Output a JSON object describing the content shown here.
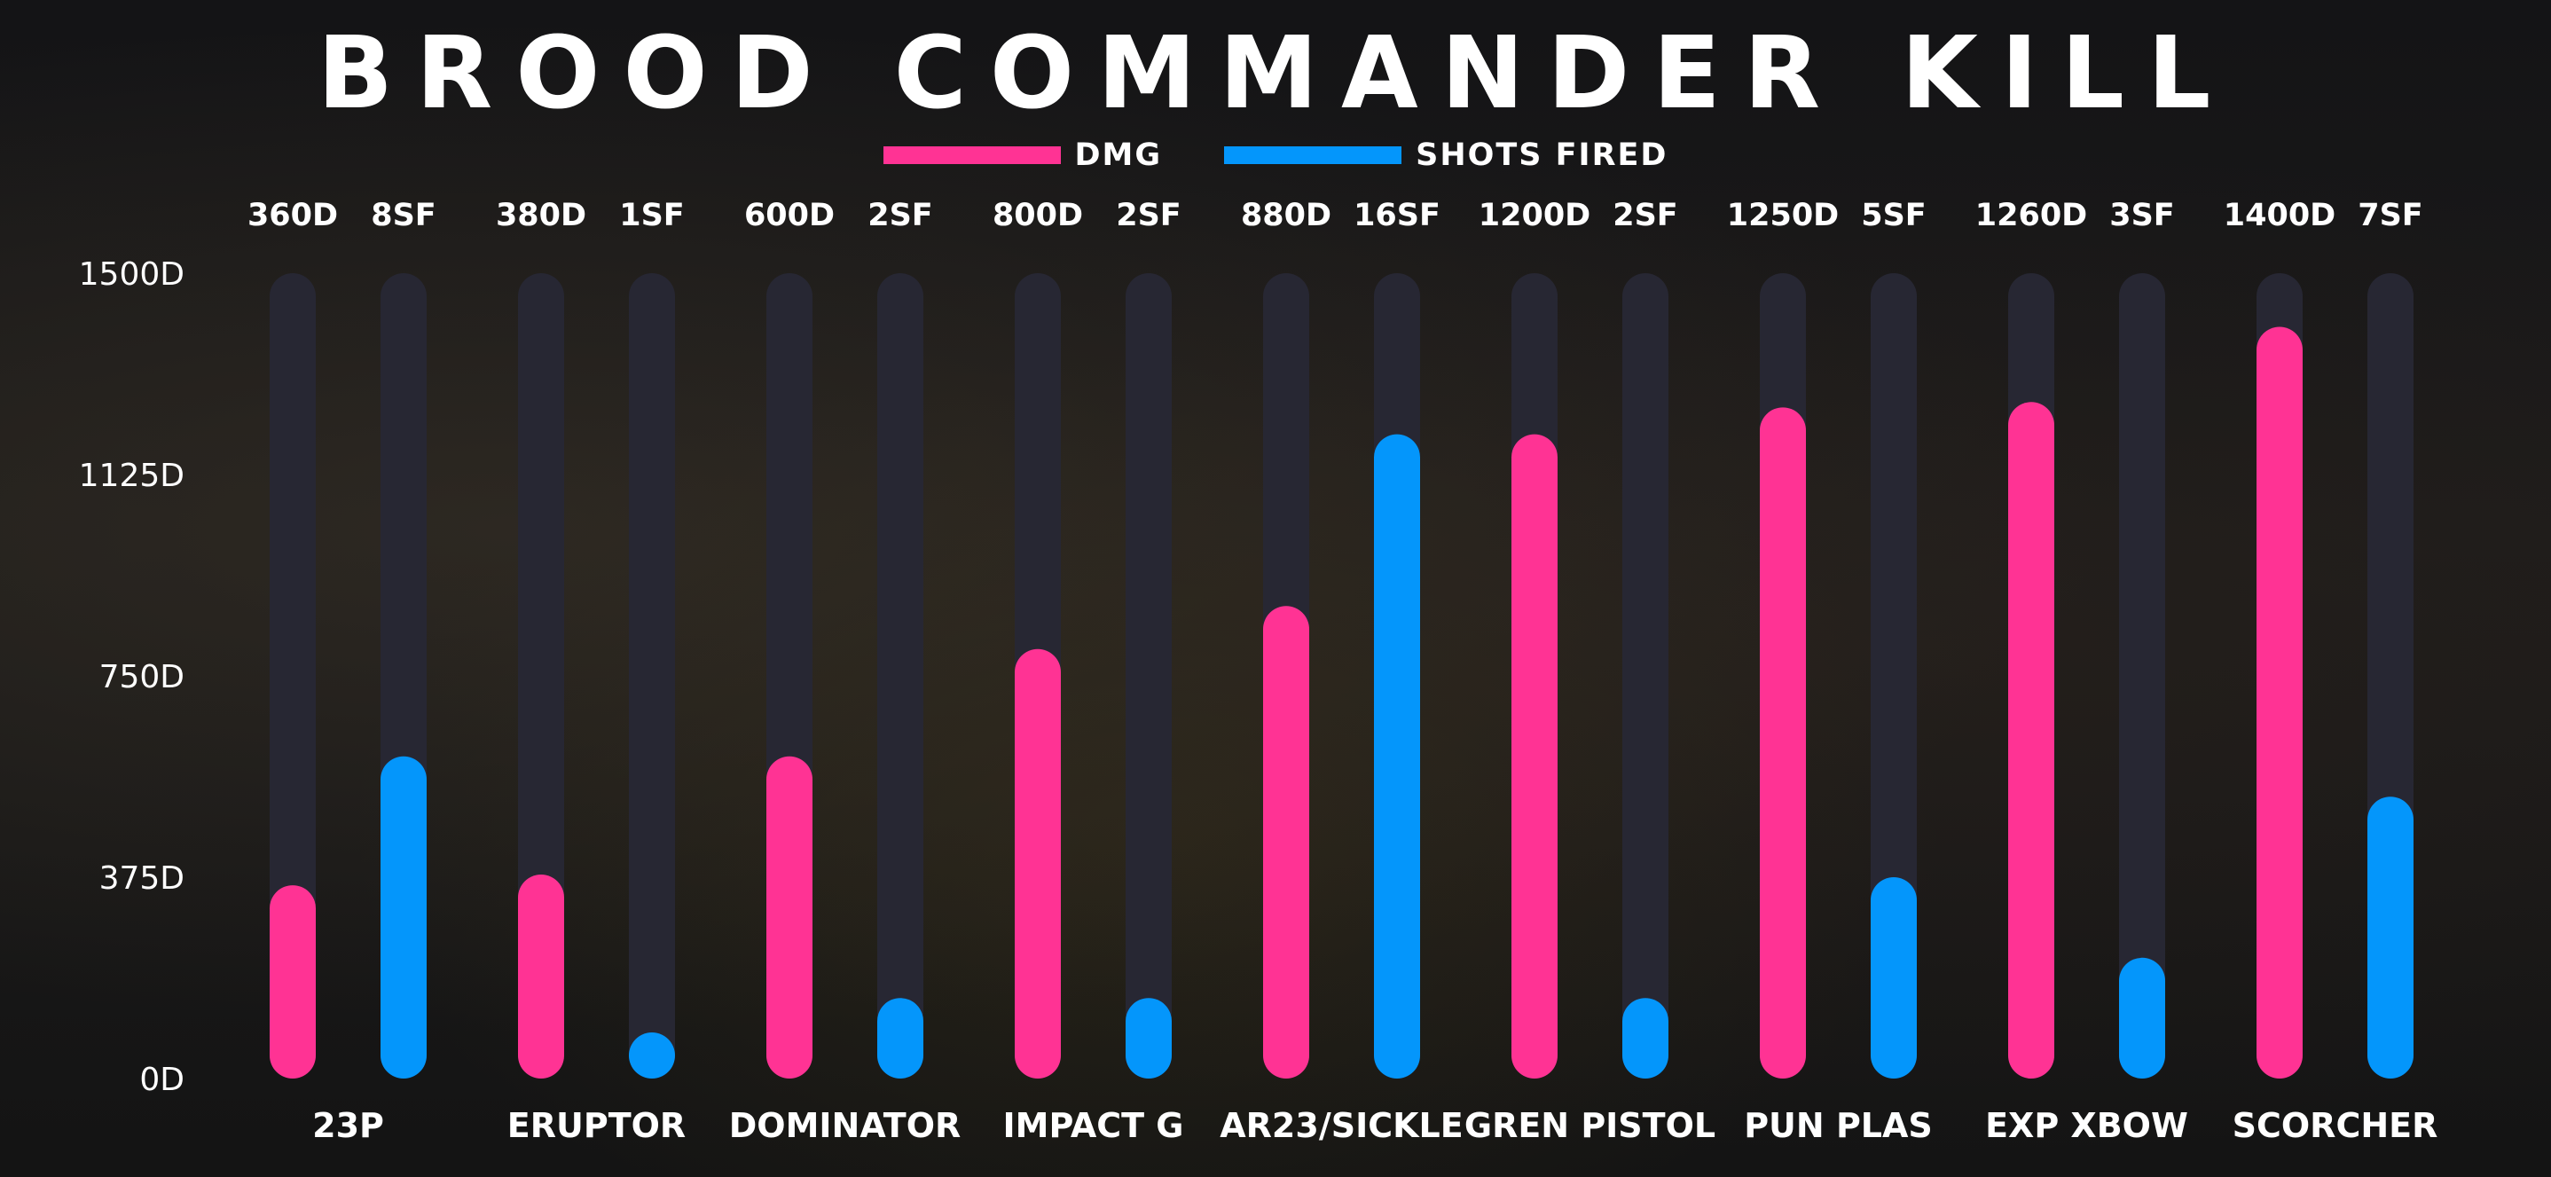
{
  "chart_data": {
    "type": "bar",
    "title": "BROOD COMMANDER KILL",
    "legend": [
      {
        "label": "DMG",
        "color": "#ff3394"
      },
      {
        "label": "SHOTS FIRED",
        "color": "#0496fb"
      }
    ],
    "ylim": [
      0,
      1500
    ],
    "y_ticks": [
      {
        "value": 0,
        "label": "0D"
      },
      {
        "value": 375,
        "label": "375D"
      },
      {
        "value": 750,
        "label": "750D"
      },
      {
        "value": 1125,
        "label": "1125D"
      },
      {
        "value": 1500,
        "label": "1500D"
      }
    ],
    "categories": [
      "23P",
      "ERUPTOR",
      "DOMINATOR",
      "IMPACT G",
      "AR23/SICKLE",
      "GREN PISTOL",
      "PUN PLAS",
      "EXP XBOW",
      "SCORCHER"
    ],
    "series": [
      {
        "name": "DMG",
        "color": "#ff3394",
        "values": [
          360,
          380,
          600,
          800,
          880,
          1200,
          1250,
          1260,
          1400
        ],
        "labels": [
          "360D",
          "380D",
          "600D",
          "800D",
          "880D",
          "1200D",
          "1250D",
          "1260D",
          "1400D"
        ]
      },
      {
        "name": "SHOTS FIRED",
        "color": "#0496fb",
        "values": [
          8,
          1,
          2,
          2,
          16,
          2,
          5,
          3,
          7
        ],
        "labels": [
          "8SF",
          "1SF",
          "2SF",
          "2SF",
          "16SF",
          "2SF",
          "5SF",
          "3SF",
          "7SF"
        ],
        "axis_max": 20
      }
    ],
    "track_color": "#272733",
    "grid": false,
    "legend_position": "top-center"
  }
}
